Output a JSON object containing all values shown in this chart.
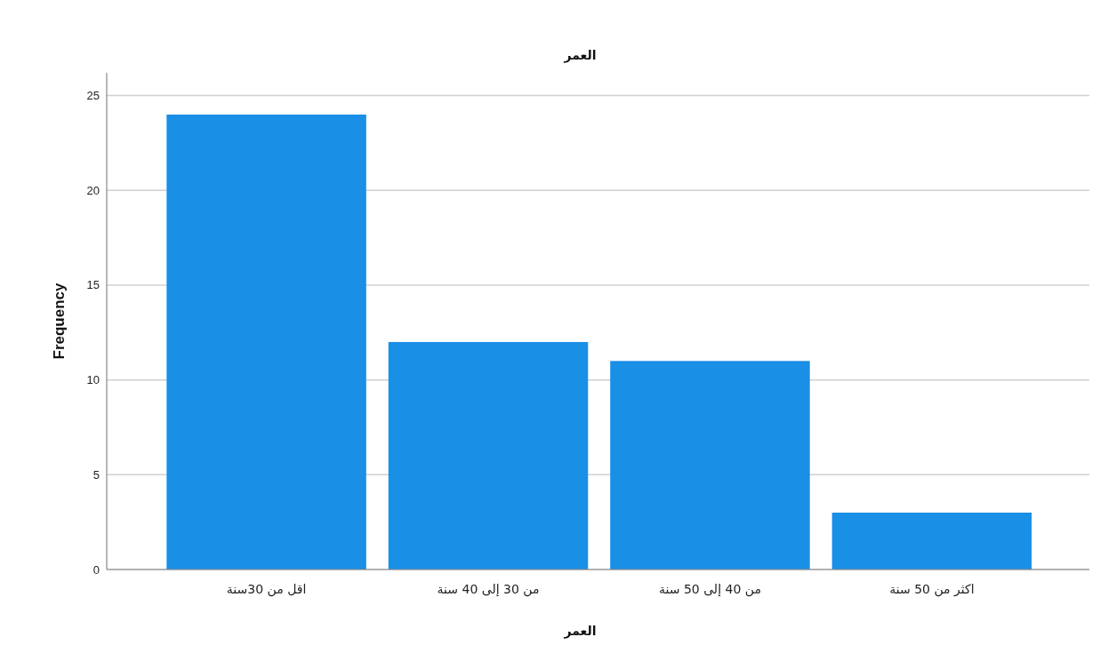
{
  "chart_data": {
    "type": "bar",
    "title": "العمر",
    "xlabel": "العمر",
    "ylabel": "Frequency",
    "categories": [
      "اقل من 30سنة",
      "من 30 إلى 40 سنة",
      "من 40 إلى 50 سنة",
      "اكثر من 50 سنة"
    ],
    "values": [
      24,
      12,
      11,
      3
    ],
    "color": "#1a8fe6",
    "ylim": [
      0,
      26.2
    ],
    "yticks": [
      0,
      5,
      10,
      15,
      20,
      25
    ],
    "grid": "y"
  }
}
